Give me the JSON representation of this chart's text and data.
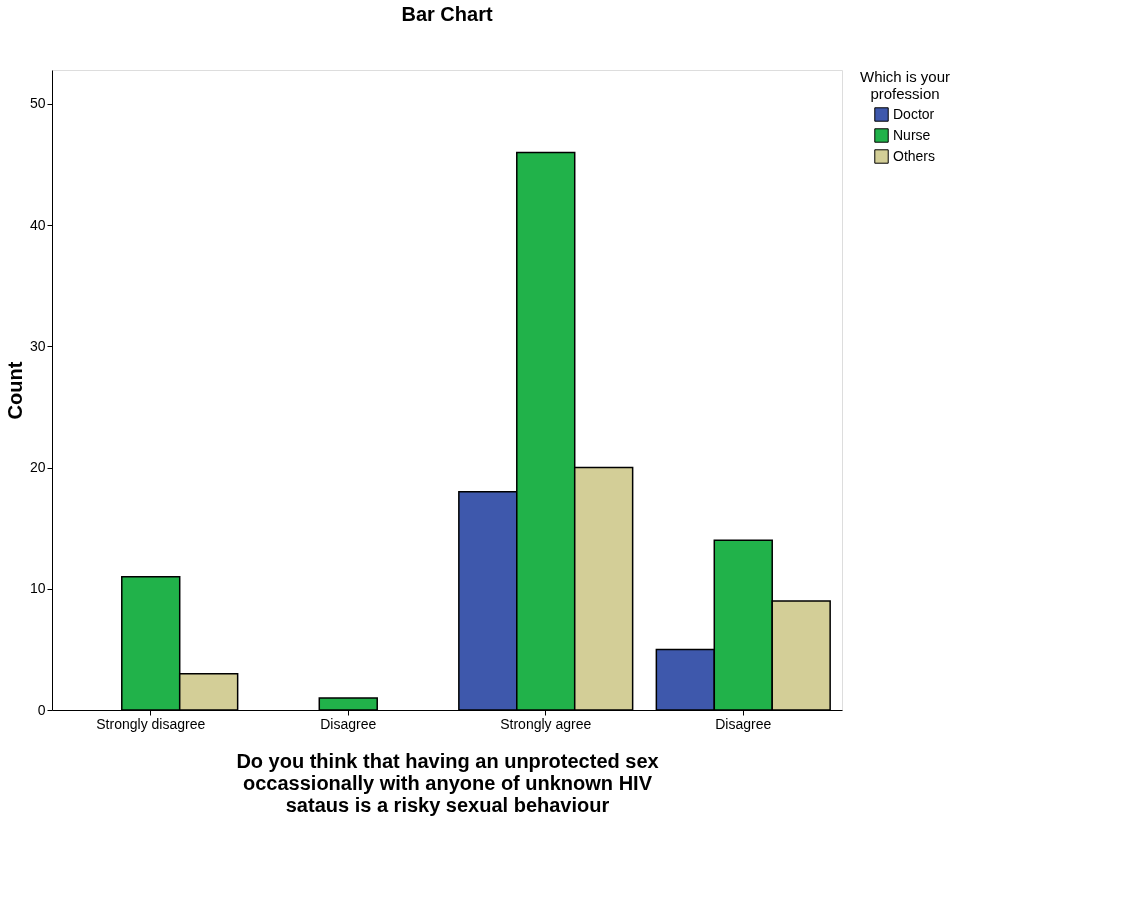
{
  "chart_data": {
    "type": "bar",
    "title": "Bar Chart",
    "categories": [
      "Strongly disagree",
      "Disagree",
      "Strongly agree",
      "Disagree"
    ],
    "series": [
      {
        "name": "Doctor",
        "color": "#3e58ac",
        "values": [
          null,
          null,
          18,
          5
        ]
      },
      {
        "name": "Nurse",
        "color": "#21b24a",
        "values": [
          11,
          1,
          46,
          14
        ]
      },
      {
        "name": "Others",
        "color": "#d3ce97",
        "values": [
          3,
          null,
          20,
          9
        ]
      }
    ],
    "xlabel": "Do you think that having an unprotected sex occassionally with anyone of unknown HIV sataus is a risky sexual behaviour",
    "ylabel": "Count",
    "legend_title": "Which is your profession",
    "ylim": [
      0,
      52.8
    ],
    "yticks": [
      0,
      10,
      20,
      30,
      40,
      50
    ],
    "grid": false,
    "legend": "top right"
  }
}
